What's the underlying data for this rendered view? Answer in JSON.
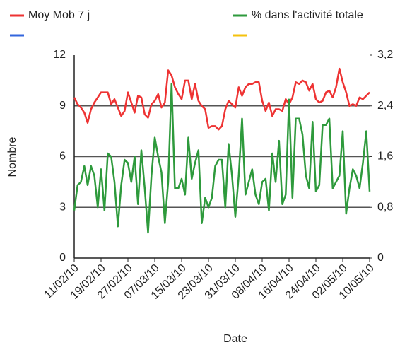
{
  "chart_data": {
    "type": "line",
    "xlabel": "Date",
    "ylabel": "Nombre",
    "categories": [
      "11/02/10",
      null,
      null,
      null,
      null,
      null,
      null,
      null,
      "19/02/10",
      null,
      null,
      null,
      null,
      null,
      null,
      null,
      "27/02/10",
      null,
      null,
      null,
      null,
      null,
      null,
      null,
      "07/03/10",
      null,
      null,
      null,
      null,
      null,
      null,
      null,
      "15/03/10",
      null,
      null,
      null,
      null,
      null,
      null,
      null,
      "23/03/10",
      null,
      null,
      null,
      null,
      null,
      null,
      null,
      "31/03/10",
      null,
      null,
      null,
      null,
      null,
      null,
      null,
      "08/04/10",
      null,
      null,
      null,
      null,
      null,
      null,
      null,
      "16/04/10",
      null,
      null,
      null,
      null,
      null,
      null,
      null,
      "24/04/10",
      null,
      null,
      null,
      null,
      null,
      null,
      null,
      "02/05/10",
      null,
      null,
      null,
      null,
      null,
      null,
      null,
      "10/05/10"
    ],
    "series": [
      {
        "name": "Moy Mob 7 j",
        "color": "#ee3333",
        "axis": "y",
        "values": [
          9.5,
          9.1,
          8.9,
          8.6,
          8.0,
          8.8,
          9.2,
          9.5,
          9.8,
          9.8,
          9.8,
          9.1,
          9.4,
          8.9,
          8.4,
          8.7,
          9.8,
          9.2,
          8.6,
          9.6,
          9.5,
          8.5,
          8.3,
          9.1,
          9.3,
          9.7,
          8.9,
          9.2,
          11.1,
          10.8,
          10.1,
          9.7,
          9.4,
          10.5,
          10.5,
          9.4,
          10.3,
          9.3,
          9.0,
          8.8,
          7.7,
          7.8,
          7.8,
          7.6,
          7.8,
          8.8,
          9.3,
          9.1,
          8.9,
          10.1,
          9.6,
          10.1,
          10.3,
          10.3,
          10.4,
          10.4,
          9.3,
          8.7,
          9.2,
          8.4,
          8.8,
          8.8,
          8.7,
          9.4,
          9.1,
          9.5,
          10.4,
          10.3,
          10.5,
          10.4,
          9.9,
          10.3,
          9.4,
          9.2,
          9.3,
          9.8,
          9.9,
          9.5,
          10.1,
          11.2,
          10.4,
          9.8,
          9.0,
          9.1,
          9.0,
          9.5,
          9.4,
          9.6,
          9.8
        ]
      },
      {
        "name": "% dans l'activité totale",
        "color": "#2e9a3c",
        "axis": "y2",
        "values": [
          0.75,
          1.15,
          1.2,
          1.45,
          1.15,
          1.45,
          1.3,
          0.8,
          1.4,
          0.75,
          1.65,
          1.6,
          1.2,
          0.5,
          1.15,
          1.55,
          1.5,
          1.2,
          1.6,
          0.85,
          1.7,
          1.1,
          0.4,
          1.3,
          1.9,
          1.6,
          1.35,
          0.55,
          1.2,
          2.75,
          1.1,
          1.1,
          1.25,
          1.0,
          1.9,
          1.25,
          1.5,
          1.7,
          0.55,
          0.95,
          0.8,
          0.95,
          1.45,
          1.55,
          1.55,
          0.8,
          1.8,
          1.3,
          0.65,
          1.3,
          2.2,
          1.0,
          1.2,
          1.4,
          1.0,
          0.85,
          1.2,
          1.25,
          0.75,
          1.65,
          1.2,
          1.85,
          0.85,
          1.0,
          2.5,
          0.95,
          2.2,
          2.2,
          1.95,
          1.3,
          1.1,
          2.15,
          1.05,
          1.15,
          2.1,
          2.1,
          2.2,
          1.1,
          1.2,
          1.3,
          2.0,
          0.7,
          1.1,
          1.4,
          1.3,
          1.1,
          1.5,
          2.0,
          1.05
        ]
      }
    ],
    "ylim": [
      0,
      12
    ],
    "yticks": [
      0,
      3,
      6,
      9,
      12
    ],
    "y2lim": [
      0,
      3.2
    ],
    "y2ticks": [
      0,
      {
        "value": 0.8,
        "label": "0,8"
      },
      {
        "value": 1.6,
        "label": "1,6"
      },
      {
        "value": 2.4,
        "label": "2,4"
      },
      {
        "value": 3.2,
        "label": "3,2"
      }
    ],
    "grid": true
  }
}
